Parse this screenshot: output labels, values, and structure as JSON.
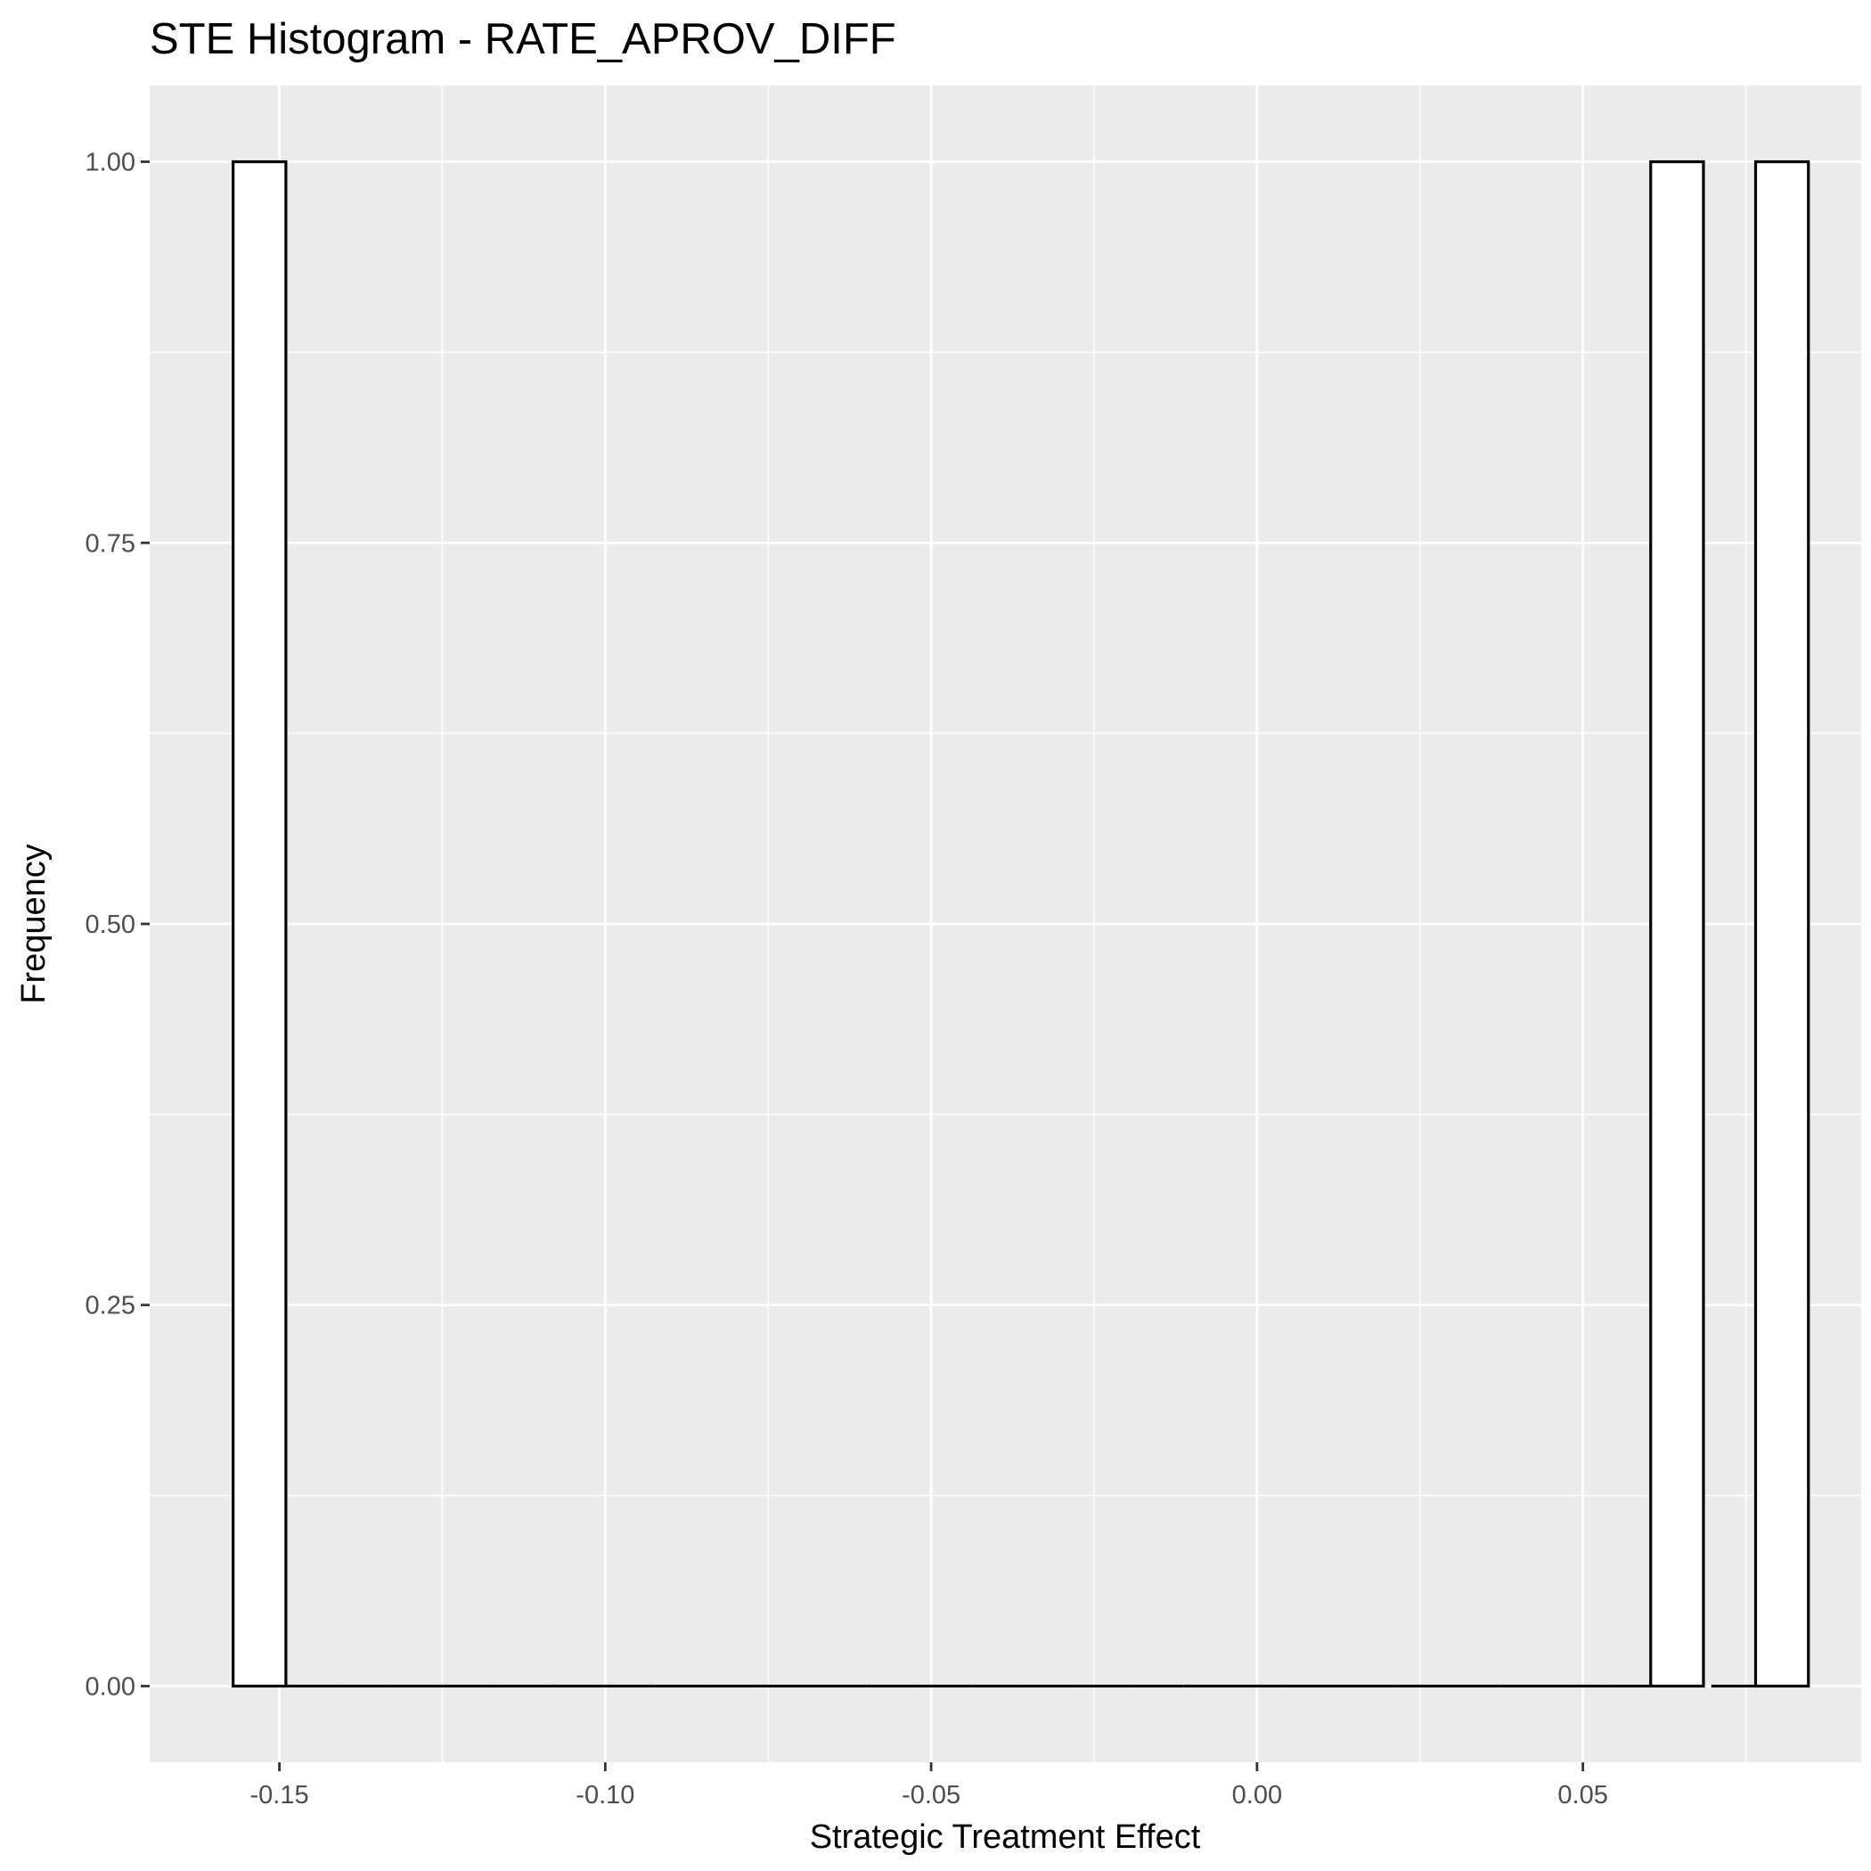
{
  "chart_data": {
    "type": "bar",
    "title": "STE Histogram -  RATE_APROV_DIFF",
    "xlabel": "Strategic Treatment Effect",
    "ylabel": "Frequency",
    "xlim": [
      -0.1699,
      0.0927
    ],
    "ylim": [
      -0.05,
      1.05
    ],
    "x_ticks": [
      -0.15,
      -0.1,
      -0.05,
      0.0,
      0.05
    ],
    "x_tick_labels": [
      "-0.15",
      "-0.10",
      "-0.05",
      "0.00",
      "0.05"
    ],
    "y_ticks": [
      0,
      0.25,
      0.5,
      0.75,
      1.0
    ],
    "y_tick_labels": [
      "0.00",
      "0.25",
      "0.50",
      "0.75",
      "1.00"
    ],
    "grid": true,
    "bin_width": 0.0081,
    "bins_start": -0.1571,
    "bin_count": 30,
    "nonzero_bins": [
      {
        "x_min": -0.1571,
        "x_max": -0.149,
        "count": 1
      },
      {
        "x_min": 0.0604,
        "x_max": 0.0685,
        "count": 1
      },
      {
        "x_min": 0.0765,
        "x_max": 0.0846,
        "count": 1
      }
    ],
    "colors": {
      "panel_background": "#ebebeb",
      "grid": "#ffffff",
      "bar_fill": "#ffffff",
      "bar_outline": "#000000"
    }
  }
}
